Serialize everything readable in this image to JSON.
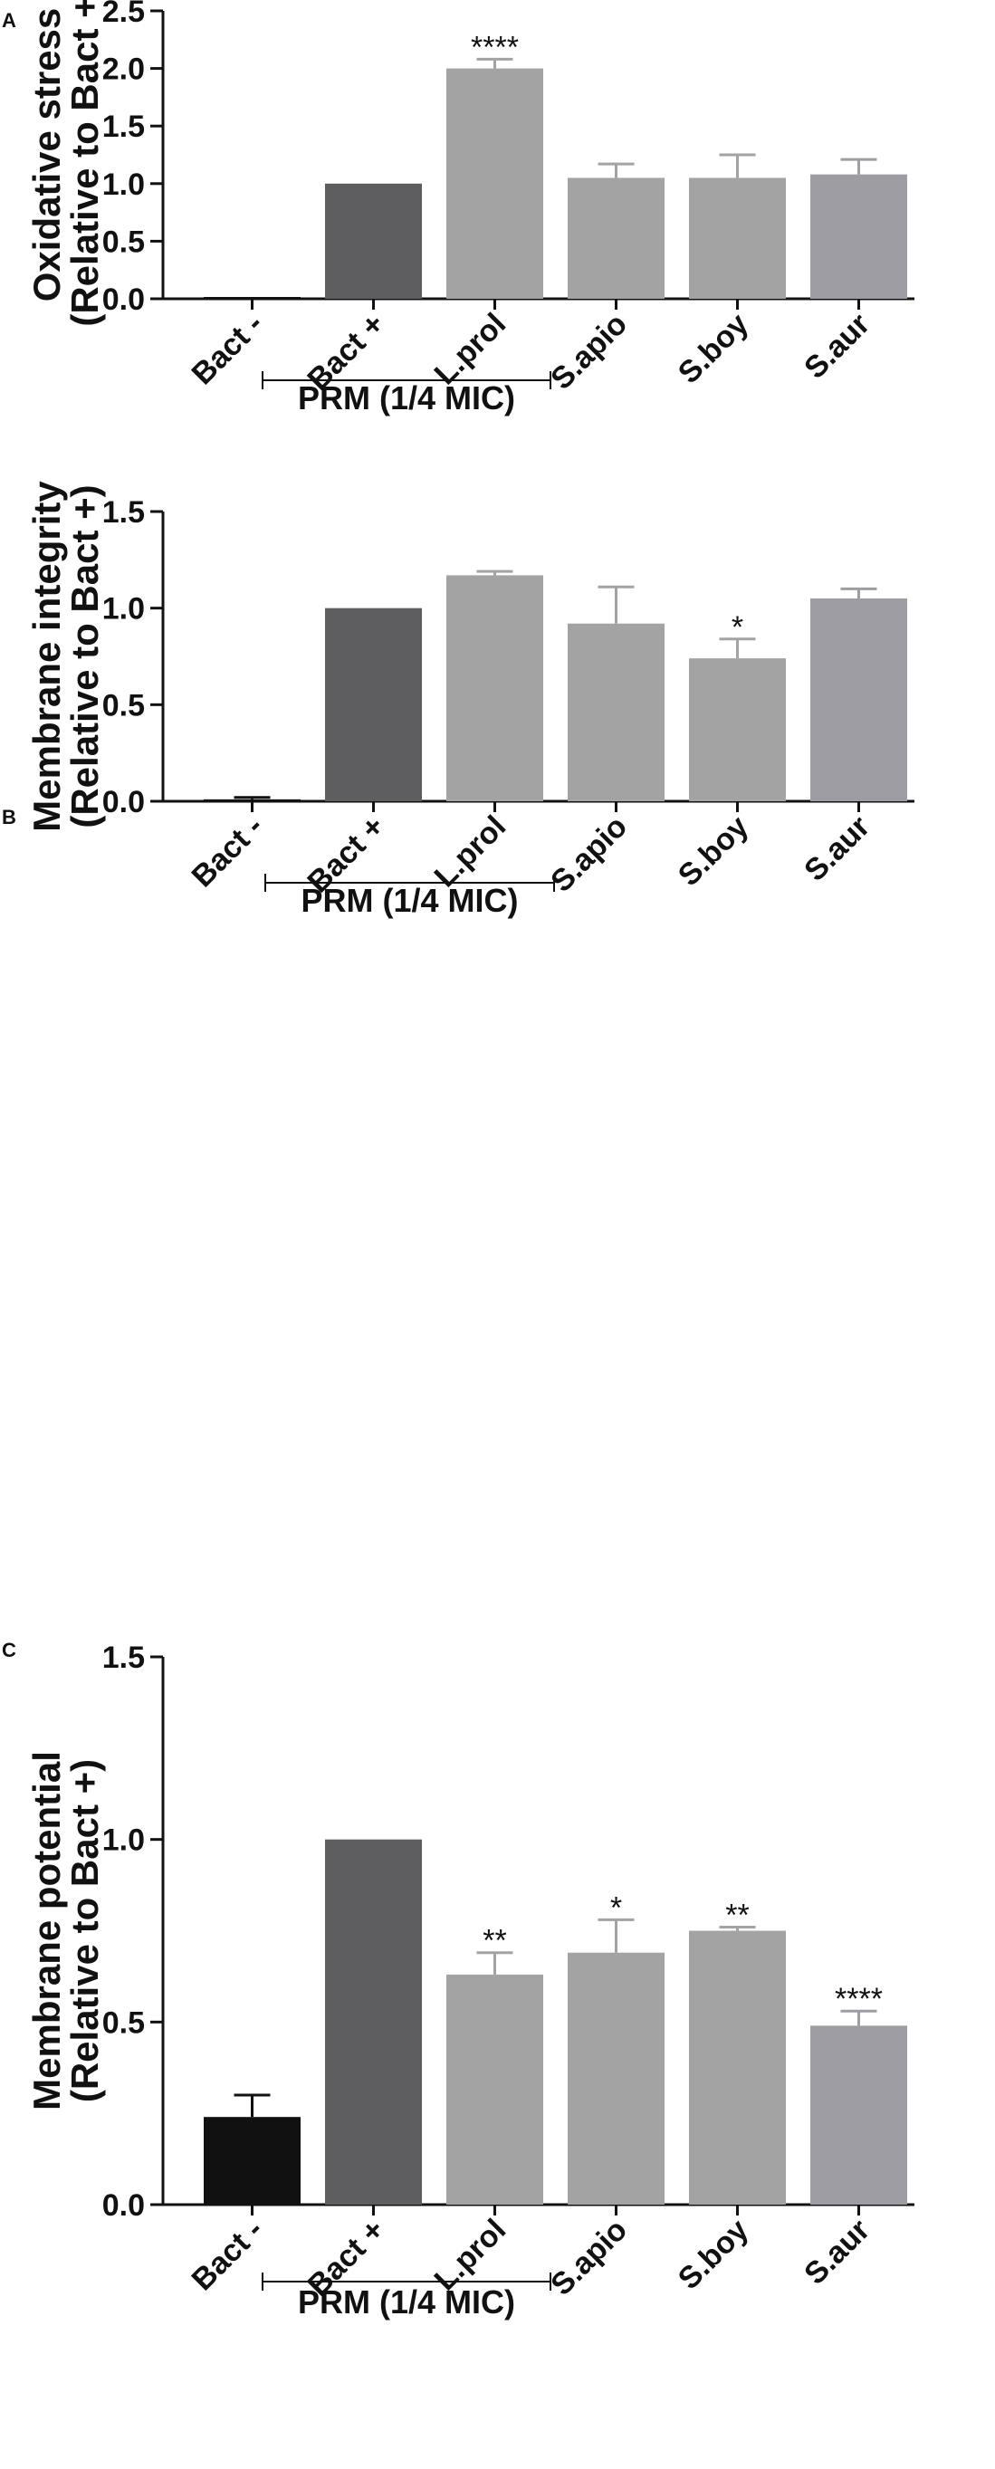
{
  "chart_data": [
    {
      "type": "bar",
      "panel": "A",
      "ylabel_line1": "Oxidative stress",
      "ylabel_line2": "(Relative to Bact +)",
      "ylim": [
        0,
        2.5
      ],
      "yticks": [
        "0.0",
        "0.5",
        "1.0",
        "1.5",
        "2.0",
        "2.5"
      ],
      "categories": [
        "Bact -",
        "Bact +",
        "L.prol",
        "S.apio",
        "S.boy",
        "S.aur"
      ],
      "values": [
        0.01,
        1.0,
        2.0,
        1.05,
        1.05,
        1.08
      ],
      "errors": [
        0,
        0,
        0.08,
        0.12,
        0.2,
        0.13
      ],
      "significance": [
        "",
        "",
        "****",
        "",
        "",
        ""
      ],
      "bar_colors": [
        "#111111",
        "#5e5e61",
        "#a3a3a3",
        "#a3a3a3",
        "#a3a3a3",
        "#9d9da3"
      ],
      "group_label": "PRM (1/4 MIC)",
      "group_span": [
        "L.prol",
        "S.aur"
      ]
    },
    {
      "type": "bar",
      "panel": "B",
      "ylabel_line1": "Membrane integrity",
      "ylabel_line2": "(Relative to Bact +)",
      "ylim": [
        0,
        1.5
      ],
      "yticks": [
        "0.0",
        "0.5",
        "1.0",
        "1.5"
      ],
      "categories": [
        "Bact -",
        "Bact +",
        "L.prol",
        "S.apio",
        "S.boy",
        "S.aur"
      ],
      "values": [
        0.01,
        1.0,
        1.17,
        0.92,
        0.74,
        1.05
      ],
      "errors": [
        0.01,
        0,
        0.02,
        0.19,
        0.1,
        0.05
      ],
      "significance": [
        "",
        "",
        "",
        "",
        "*",
        ""
      ],
      "bar_colors": [
        "#111111",
        "#5e5e61",
        "#a3a3a3",
        "#a3a3a3",
        "#a3a3a3",
        "#9d9da3"
      ],
      "group_label": "PRM (1/4 MIC)",
      "group_span": [
        "L.prol",
        "S.aur"
      ]
    },
    {
      "type": "bar",
      "panel": "C",
      "ylabel_line1": "Membrane potential",
      "ylabel_line2": "(Relative to Bact +)",
      "ylim": [
        0,
        1.5
      ],
      "yticks": [
        "0.0",
        "0.5",
        "1.0",
        "1.5"
      ],
      "categories": [
        "Bact -",
        "Bact +",
        "L.prol",
        "S.apio",
        "S.boy",
        "S.aur"
      ],
      "values": [
        0.24,
        1.0,
        0.63,
        0.69,
        0.75,
        0.49
      ],
      "errors": [
        0.06,
        0,
        0.06,
        0.09,
        0.01,
        0.04
      ],
      "significance": [
        "",
        "",
        "**",
        "*",
        "**",
        "****"
      ],
      "bar_colors": [
        "#111111",
        "#5e5e61",
        "#a3a3a3",
        "#a3a3a3",
        "#a3a3a3",
        "#9d9da3"
      ],
      "group_label": "PRM (1/4 MIC)",
      "group_span": [
        "L.prol",
        "S.aur"
      ]
    }
  ]
}
